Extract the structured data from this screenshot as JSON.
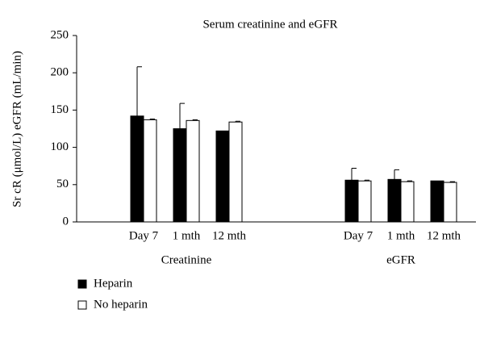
{
  "chart_data": {
    "type": "bar",
    "title": "Serum creatinine and eGFR",
    "y_label": "Sr cR (μmol/L) eGFR (mL/min)",
    "groups": [
      {
        "name": "Creatinine",
        "categories": [
          "Day 7",
          "1 mth",
          "12 mth"
        ]
      },
      {
        "name": "eGFR",
        "categories": [
          "Day 7",
          "1 mth",
          "12 mth"
        ]
      }
    ],
    "series": [
      {
        "name": "Heparin",
        "color": "#000000",
        "values": [
          142,
          125,
          122,
          56,
          57,
          55
        ],
        "errors": [
          66,
          34,
          null,
          16,
          13,
          null
        ]
      },
      {
        "name": "No heparin",
        "color": "#ffffff",
        "values": [
          137,
          136,
          134,
          55,
          54,
          53
        ],
        "errors": [
          1,
          1,
          1,
          1,
          1,
          1
        ]
      }
    ],
    "ylim": [
      0,
      250
    ],
    "yticks": [
      0,
      50,
      100,
      150,
      200,
      250
    ],
    "legend": "bottom-left"
  }
}
